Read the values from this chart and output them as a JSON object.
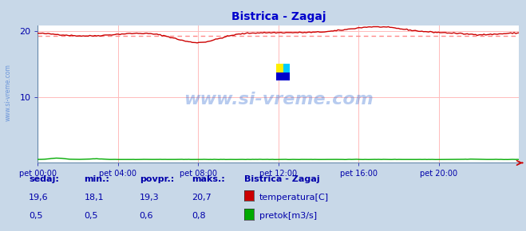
{
  "title": "Bistrica - Zagaj",
  "title_color": "#0000cc",
  "bg_color": "#c8d8e8",
  "plot_bg_color": "#ffffff",
  "grid_color": "#ffbbbb",
  "x_label_color": "#0000aa",
  "y_label_color": "#0000aa",
  "watermark_text": "www.si-vreme.com",
  "watermark_color": "#1155cc",
  "watermark_alpha": 0.3,
  "side_watermark_color": "#1155cc",
  "side_watermark_alpha": 0.5,
  "temp_color": "#cc0000",
  "flow_color": "#00aa00",
  "avg_line_color": "#ff8888",
  "ylim_temp": [
    0,
    20.9
  ],
  "ylim": [
    0,
    20.9
  ],
  "yticks": [
    10,
    20
  ],
  "x_ticks_labels": [
    "pet 00:00",
    "pet 04:00",
    "pet 08:00",
    "pet 12:00",
    "pet 16:00",
    "pet 20:00"
  ],
  "temp_avg": 19.3,
  "temp_min": 18.1,
  "temp_max": 20.7,
  "temp_sedaj": 19.6,
  "flow_avg": 0.6,
  "flow_min": 0.5,
  "flow_max": 0.8,
  "flow_sedaj": 0.5,
  "legend_title": "Bistrica - Zagaj",
  "legend_labels": [
    "temperatura[C]",
    "pretok[m3/s]"
  ],
  "legend_colors": [
    "#cc0000",
    "#00aa00"
  ],
  "stat_labels": [
    "sedaj:",
    "min.:",
    "povpr.:",
    "maks.:"
  ],
  "stat_color": "#0000aa",
  "n_points": 288
}
